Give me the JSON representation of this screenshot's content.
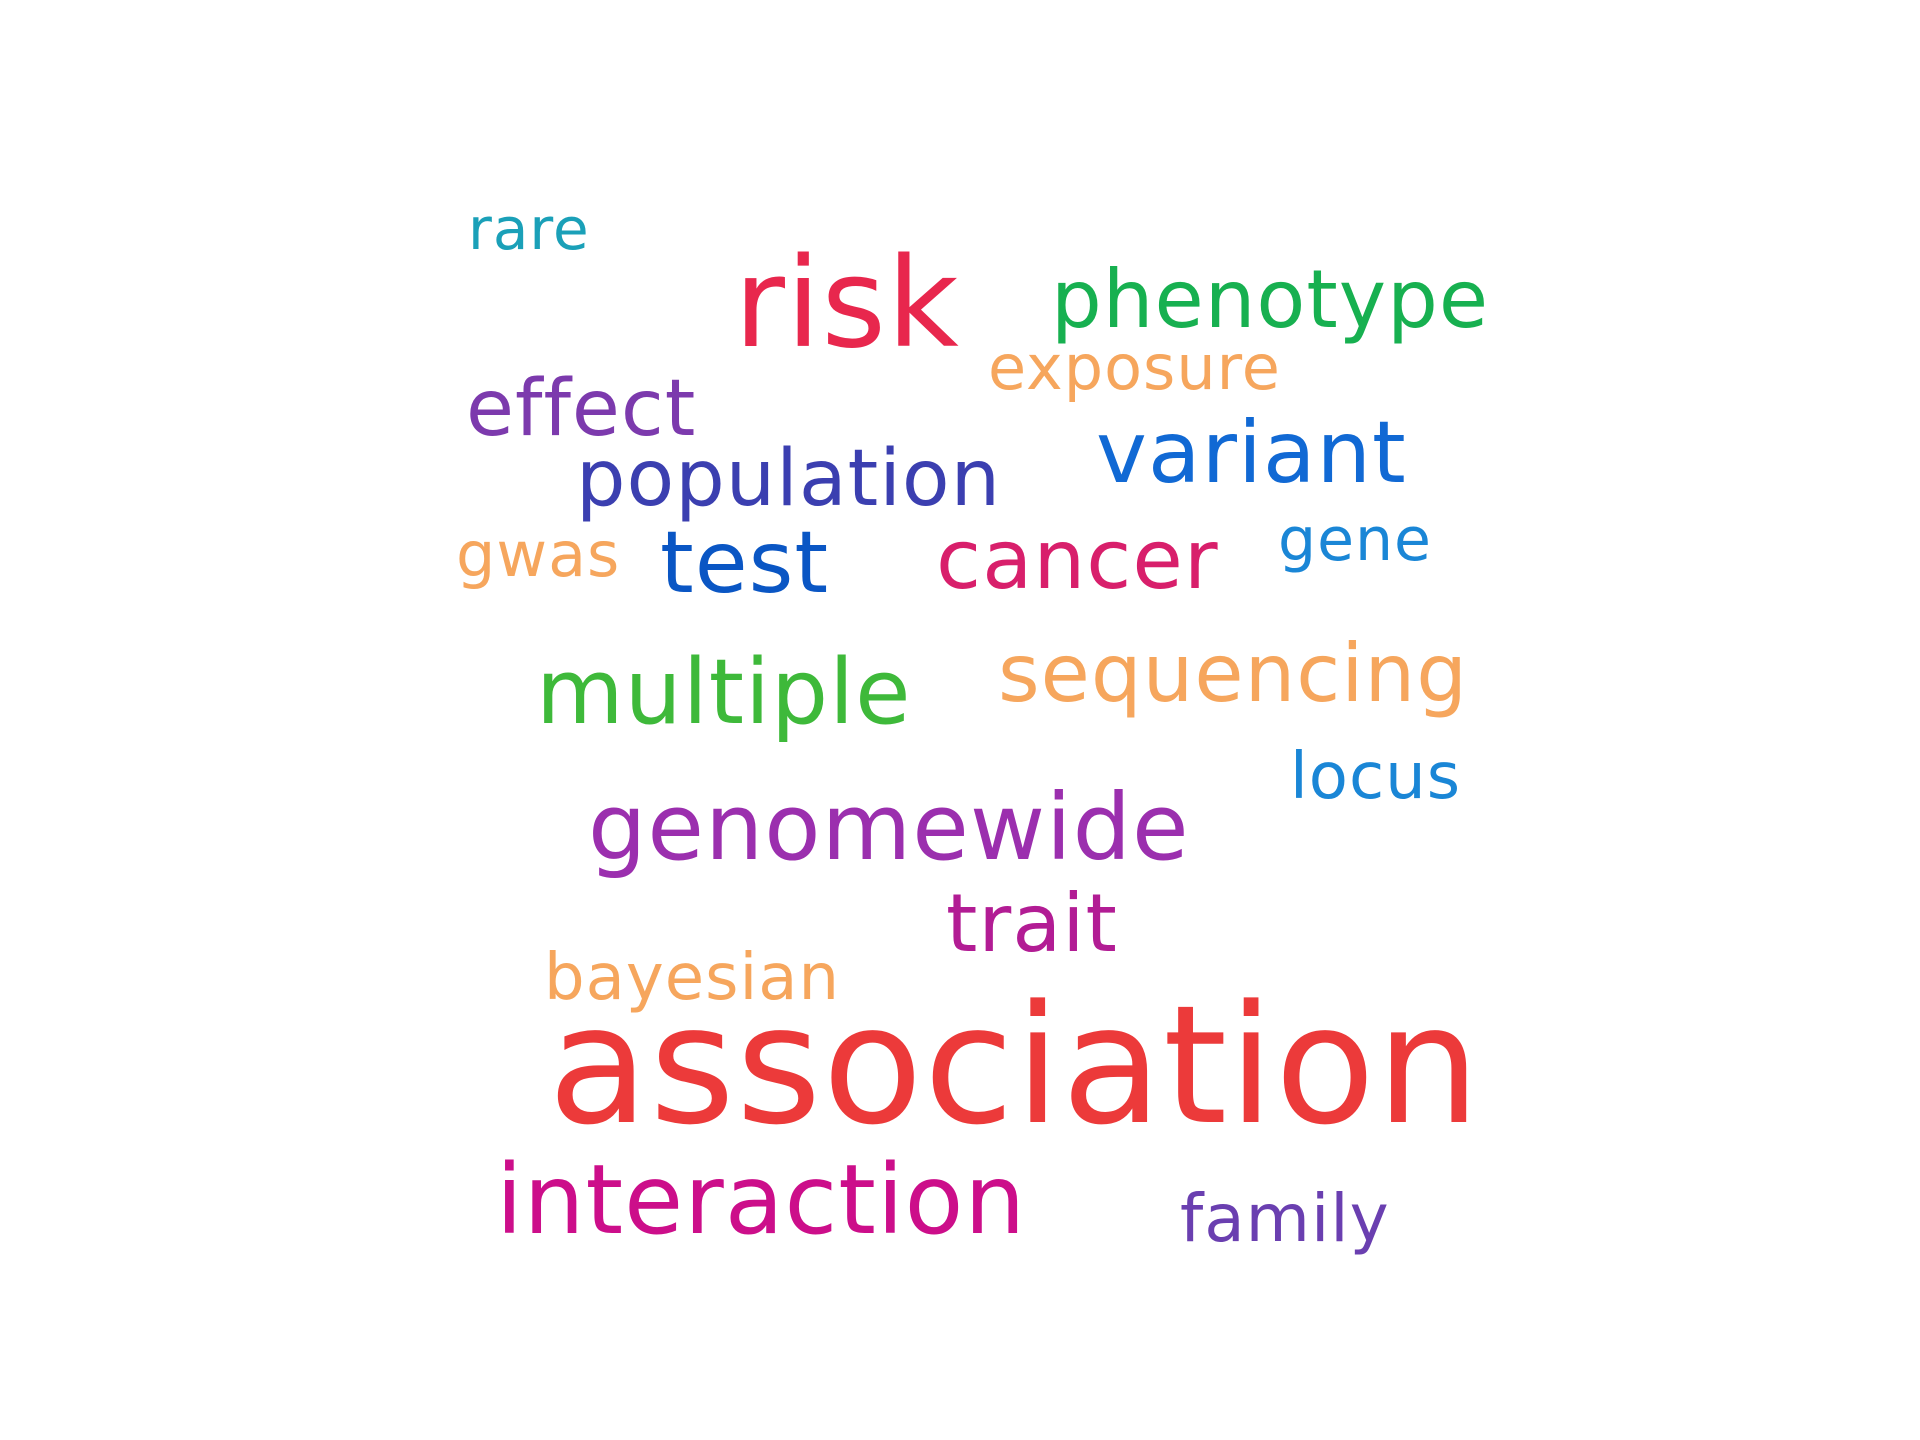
{
  "words": [
    {
      "id": "rare",
      "text": "rare",
      "color": "#1aa0b8"
    },
    {
      "id": "risk",
      "text": "risk",
      "color": "#e8274d"
    },
    {
      "id": "phenotype",
      "text": "phenotype",
      "color": "#17b050"
    },
    {
      "id": "exposure",
      "text": "exposure",
      "color": "#f6a65d"
    },
    {
      "id": "effect",
      "text": "effect",
      "color": "#7c3aad"
    },
    {
      "id": "variant",
      "text": "variant",
      "color": "#1169d4"
    },
    {
      "id": "population",
      "text": "population",
      "color": "#3b3fb0"
    },
    {
      "id": "gwas",
      "text": "gwas",
      "color": "#f6a65d"
    },
    {
      "id": "test",
      "text": "test",
      "color": "#0a56c4"
    },
    {
      "id": "cancer",
      "text": "cancer",
      "color": "#d81f6b"
    },
    {
      "id": "gene",
      "text": "gene",
      "color": "#1a86d6"
    },
    {
      "id": "multiple",
      "text": "multiple",
      "color": "#3eb93a"
    },
    {
      "id": "sequencing",
      "text": "sequencing",
      "color": "#f6a65d"
    },
    {
      "id": "locus",
      "text": "locus",
      "color": "#1a86d6"
    },
    {
      "id": "genomewide",
      "text": "genomewide",
      "color": "#9b2fae"
    },
    {
      "id": "trait",
      "text": "trait",
      "color": "#b21c94"
    },
    {
      "id": "bayesian",
      "text": "bayesian",
      "color": "#f6a65d"
    },
    {
      "id": "association",
      "text": "association",
      "color": "#ec3a3a"
    },
    {
      "id": "interaction",
      "text": "interaction",
      "color": "#cc0e8a"
    },
    {
      "id": "family",
      "text": "family",
      "color": "#6a3fb0"
    }
  ]
}
